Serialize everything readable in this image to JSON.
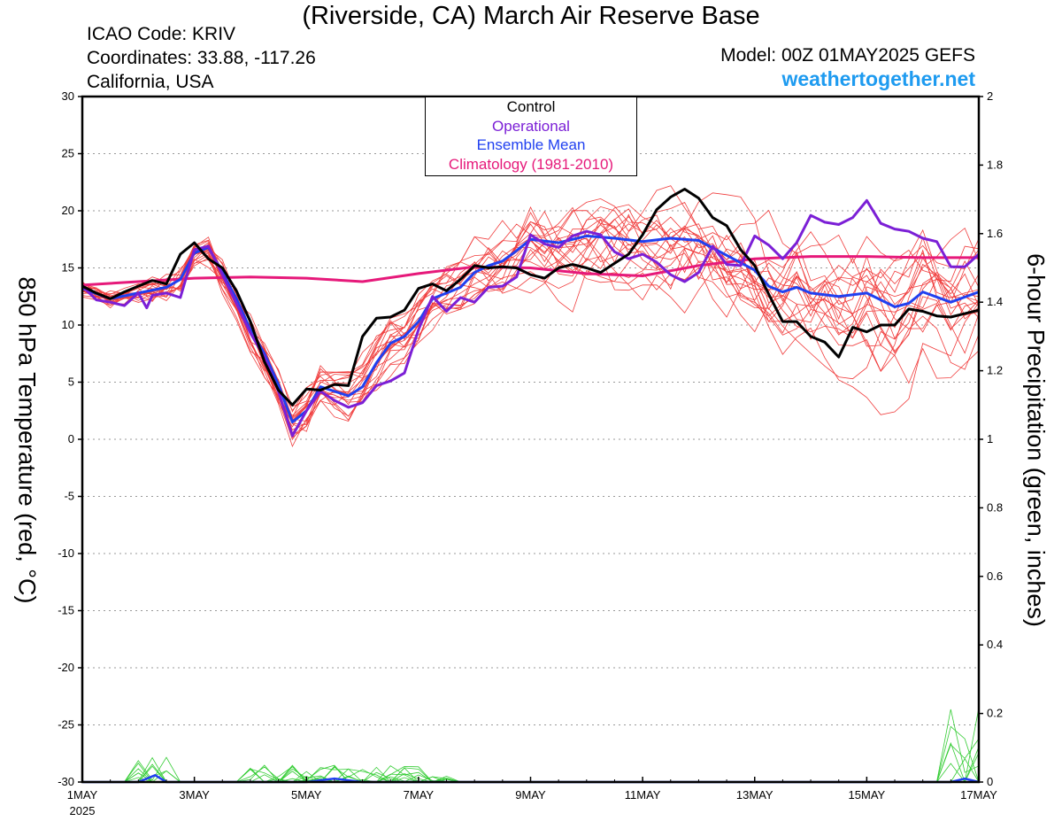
{
  "header": {
    "title": "(Riverside, CA) March Air Reserve Base",
    "icao": "ICAO Code: KRIV",
    "coords": "Coordinates: 33.88, -117.26",
    "region": "California, USA",
    "model": "Model: 00Z 01MAY2025 GEFS",
    "site": "weathertogether.net"
  },
  "legend": {
    "control": "Control",
    "operational": "Operational",
    "mean": "Ensemble Mean",
    "clim": "Climatology (1981-2010)"
  },
  "colors": {
    "control": "#000000",
    "operational": "#7b1fd6",
    "mean": "#2040f0",
    "clim": "#e6197a",
    "members": "#f03c3c",
    "precip": "#33cc33",
    "site": "#1e9bf0"
  },
  "chart_data": {
    "type": "line",
    "ylabel": "850 hPa Temperature (red, °C)",
    "y2label": "6-hour Precipitation (green, inches)",
    "xlim": [
      0,
      16
    ],
    "ylim": [
      -30,
      30
    ],
    "y2lim": [
      0,
      2
    ],
    "grid": "horizontal dashed",
    "yticks": [
      "30",
      "25",
      "20",
      "15",
      "10",
      "5",
      "0",
      "-5",
      "-10",
      "-15",
      "-20",
      "-25",
      "-30"
    ],
    "y2ticks": [
      "2",
      "1.8",
      "1.6",
      "1.4",
      "1.2",
      "1",
      "0.8",
      "0.6",
      "0.4",
      "0.2",
      "0"
    ],
    "xticks": [
      {
        "x": 0,
        "label": "1MAY",
        "sub": "2025"
      },
      {
        "x": 2,
        "label": "3MAY"
      },
      {
        "x": 4,
        "label": "5MAY"
      },
      {
        "x": 6,
        "label": "7MAY"
      },
      {
        "x": 8,
        "label": "9MAY"
      },
      {
        "x": 10,
        "label": "11MAY"
      },
      {
        "x": 12,
        "label": "13MAY"
      },
      {
        "x": 14,
        "label": "15MAY"
      },
      {
        "x": 16,
        "label": "17MAY"
      }
    ],
    "series": [
      {
        "name": "Climatology (1981-2010)",
        "key": "clim",
        "width": 3,
        "points": [
          [
            0,
            13.5
          ],
          [
            1,
            13.8
          ],
          [
            2,
            14.1
          ],
          [
            3,
            14.2
          ],
          [
            4,
            14.1
          ],
          [
            5,
            13.8
          ],
          [
            6,
            14.5
          ],
          [
            7,
            15.1
          ],
          [
            8,
            15.0
          ],
          [
            9,
            14.5
          ],
          [
            10,
            14.3
          ],
          [
            11,
            15.2
          ],
          [
            12,
            15.8
          ],
          [
            13,
            16.0
          ],
          [
            14,
            16.0
          ],
          [
            15,
            15.9
          ],
          [
            16,
            15.9
          ]
        ]
      },
      {
        "name": "Ensemble Mean",
        "key": "mean",
        "width": 3,
        "points": [
          [
            0,
            13.2
          ],
          [
            0.5,
            12.3
          ],
          [
            1,
            12.8
          ],
          [
            1.5,
            13.3
          ],
          [
            1.75,
            14.0
          ],
          [
            2,
            16.3
          ],
          [
            2.25,
            16.8
          ],
          [
            2.5,
            14.6
          ],
          [
            2.75,
            12.3
          ],
          [
            3,
            9.6
          ],
          [
            3.25,
            7.5
          ],
          [
            3.5,
            4.8
          ],
          [
            3.75,
            1.5
          ],
          [
            4,
            2.5
          ],
          [
            4.25,
            4.6
          ],
          [
            4.5,
            4.2
          ],
          [
            4.75,
            3.8
          ],
          [
            5,
            4.6
          ],
          [
            5.25,
            6.7
          ],
          [
            5.5,
            8.4
          ],
          [
            5.75,
            9.0
          ],
          [
            6,
            10.3
          ],
          [
            6.25,
            12.3
          ],
          [
            6.5,
            12.8
          ],
          [
            6.75,
            13.3
          ],
          [
            7,
            14.6
          ],
          [
            7.25,
            15.2
          ],
          [
            7.5,
            15.6
          ],
          [
            7.75,
            16.5
          ],
          [
            8,
            17.5
          ],
          [
            8.5,
            17.2
          ],
          [
            9,
            17.8
          ],
          [
            9.5,
            17.6
          ],
          [
            10,
            17.3
          ],
          [
            10.5,
            17.6
          ],
          [
            11,
            17.4
          ],
          [
            11.5,
            16.1
          ],
          [
            12,
            14.8
          ],
          [
            12.25,
            13.4
          ],
          [
            12.5,
            12.9
          ],
          [
            12.75,
            13.3
          ],
          [
            13,
            12.8
          ],
          [
            13.5,
            12.5
          ],
          [
            14,
            12.8
          ],
          [
            14.5,
            11.6
          ],
          [
            14.75,
            11.9
          ],
          [
            15,
            12.9
          ],
          [
            15.5,
            12.0
          ],
          [
            16,
            12.9
          ]
        ]
      },
      {
        "name": "Operational",
        "key": "operational",
        "width": 3,
        "points": [
          [
            0,
            13.4
          ],
          [
            0.25,
            12.2
          ],
          [
            0.5,
            12.0
          ],
          [
            0.75,
            11.7
          ],
          [
            1,
            12.8
          ],
          [
            1.15,
            11.5
          ],
          [
            1.25,
            12.6
          ],
          [
            1.5,
            12.8
          ],
          [
            1.75,
            12.4
          ],
          [
            2,
            16.6
          ],
          [
            2.25,
            16.9
          ],
          [
            2.5,
            14.4
          ],
          [
            2.75,
            11.9
          ],
          [
            3,
            9.3
          ],
          [
            3.25,
            7.2
          ],
          [
            3.5,
            4.2
          ],
          [
            3.75,
            0.3
          ],
          [
            4,
            2.5
          ],
          [
            4.25,
            4.2
          ],
          [
            4.5,
            3.4
          ],
          [
            4.75,
            2.8
          ],
          [
            5,
            3.2
          ],
          [
            5.25,
            4.7
          ],
          [
            5.5,
            5.1
          ],
          [
            5.75,
            5.8
          ],
          [
            6,
            9.6
          ],
          [
            6.25,
            12.5
          ],
          [
            6.5,
            11.2
          ],
          [
            6.75,
            12.4
          ],
          [
            7,
            12.0
          ],
          [
            7.25,
            13.3
          ],
          [
            7.5,
            13.4
          ],
          [
            7.75,
            14.2
          ],
          [
            8,
            17.9
          ],
          [
            8.25,
            17.1
          ],
          [
            8.5,
            16.8
          ],
          [
            8.75,
            17.8
          ],
          [
            9,
            18.2
          ],
          [
            9.25,
            17.9
          ],
          [
            9.5,
            16.4
          ],
          [
            9.75,
            15.8
          ],
          [
            10,
            16.2
          ],
          [
            10.25,
            15.5
          ],
          [
            10.5,
            14.4
          ],
          [
            10.75,
            13.8
          ],
          [
            11,
            14.6
          ],
          [
            11.25,
            16.9
          ],
          [
            11.5,
            15.3
          ],
          [
            11.75,
            15.2
          ],
          [
            12,
            17.8
          ],
          [
            12.25,
            17.0
          ],
          [
            12.5,
            15.8
          ],
          [
            12.75,
            17.2
          ],
          [
            13,
            19.6
          ],
          [
            13.25,
            19.0
          ],
          [
            13.5,
            18.8
          ],
          [
            13.75,
            19.4
          ],
          [
            14,
            20.9
          ],
          [
            14.25,
            18.9
          ],
          [
            14.5,
            18.4
          ],
          [
            14.75,
            18.2
          ],
          [
            15,
            17.6
          ],
          [
            15.25,
            17.3
          ],
          [
            15.5,
            15.1
          ],
          [
            15.75,
            15.1
          ],
          [
            16,
            16.2
          ]
        ]
      },
      {
        "name": "Control",
        "key": "control",
        "width": 3,
        "points": [
          [
            0,
            13.4
          ],
          [
            0.25,
            12.8
          ],
          [
            0.5,
            12.3
          ],
          [
            0.75,
            12.9
          ],
          [
            1,
            13.4
          ],
          [
            1.25,
            13.9
          ],
          [
            1.5,
            13.6
          ],
          [
            1.75,
            16.2
          ],
          [
            2,
            17.2
          ],
          [
            2.25,
            15.8
          ],
          [
            2.5,
            15.0
          ],
          [
            2.75,
            13.0
          ],
          [
            3,
            10.3
          ],
          [
            3.25,
            6.8
          ],
          [
            3.5,
            4.3
          ],
          [
            3.75,
            3.0
          ],
          [
            4,
            4.4
          ],
          [
            4.25,
            4.3
          ],
          [
            4.5,
            4.8
          ],
          [
            4.75,
            4.7
          ],
          [
            5,
            9.0
          ],
          [
            5.25,
            10.6
          ],
          [
            5.5,
            10.7
          ],
          [
            5.75,
            11.3
          ],
          [
            6,
            13.2
          ],
          [
            6.25,
            13.6
          ],
          [
            6.5,
            13.0
          ],
          [
            6.75,
            14.0
          ],
          [
            7,
            15.2
          ],
          [
            7.25,
            15.0
          ],
          [
            7.5,
            15.1
          ],
          [
            7.75,
            15.0
          ],
          [
            8,
            14.4
          ],
          [
            8.25,
            14.1
          ],
          [
            8.5,
            15.0
          ],
          [
            8.75,
            15.3
          ],
          [
            9,
            15.0
          ],
          [
            9.25,
            14.6
          ],
          [
            9.5,
            15.4
          ],
          [
            9.75,
            16.2
          ],
          [
            10,
            17.9
          ],
          [
            10.25,
            20.1
          ],
          [
            10.5,
            21.2
          ],
          [
            10.75,
            21.9
          ],
          [
            11,
            21.1
          ],
          [
            11.25,
            19.4
          ],
          [
            11.5,
            18.7
          ],
          [
            11.75,
            16.6
          ],
          [
            12,
            15.2
          ],
          [
            12.25,
            12.7
          ],
          [
            12.5,
            10.3
          ],
          [
            12.75,
            10.3
          ],
          [
            13,
            9.0
          ],
          [
            13.25,
            8.5
          ],
          [
            13.5,
            7.2
          ],
          [
            13.75,
            9.8
          ],
          [
            14,
            9.4
          ],
          [
            14.25,
            10.0
          ],
          [
            14.5,
            10.0
          ],
          [
            14.75,
            11.4
          ],
          [
            15,
            11.2
          ],
          [
            15.25,
            10.8
          ],
          [
            15.5,
            10.7
          ],
          [
            15.75,
            11.0
          ],
          [
            16,
            11.3
          ]
        ]
      }
    ],
    "precip_mean": [
      [
        0,
        0
      ],
      [
        1,
        0
      ],
      [
        1.3,
        0.02
      ],
      [
        1.5,
        0
      ],
      [
        4,
        0
      ],
      [
        4.5,
        0.01
      ],
      [
        5,
        0
      ],
      [
        15.5,
        0
      ],
      [
        15.75,
        0.01
      ],
      [
        16,
        0
      ]
    ]
  }
}
